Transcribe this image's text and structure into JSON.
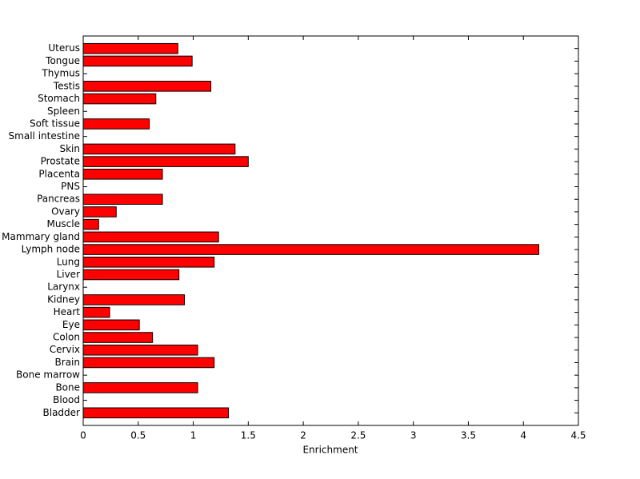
{
  "chart_data": {
    "type": "barh",
    "xlabel": "Enrichment",
    "categories": [
      "Bladder",
      "Blood",
      "Bone",
      "Bone marrow",
      "Brain",
      "Cervix",
      "Colon",
      "Eye",
      "Heart",
      "Kidney",
      "Larynx",
      "Liver",
      "Lung",
      "Lymph node",
      "Mammary gland",
      "Muscle",
      "Ovary",
      "Pancreas",
      "PNS",
      "Placenta",
      "Prostate",
      "Skin",
      "Small intestine",
      "Soft tissue",
      "Spleen",
      "Stomach",
      "Testis",
      "Thymus",
      "Tongue",
      "Uterus"
    ],
    "values": [
      1.32,
      0,
      1.04,
      0,
      1.19,
      1.04,
      0.63,
      0.51,
      0.24,
      0.92,
      0,
      0.87,
      1.19,
      4.14,
      1.23,
      0.14,
      0.3,
      0.72,
      0,
      0.72,
      1.5,
      1.38,
      0,
      0.6,
      0,
      0.66,
      1.16,
      0,
      0.99,
      0.86
    ],
    "color": "#ff0000",
    "xlim": [
      0,
      4.5
    ],
    "xticks": [
      0,
      0.5,
      1,
      1.5,
      2,
      2.5,
      3,
      3.5,
      4,
      4.5
    ]
  }
}
